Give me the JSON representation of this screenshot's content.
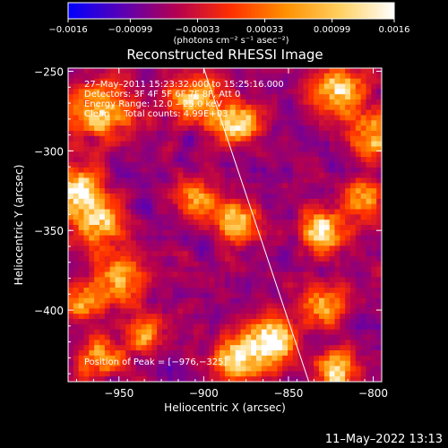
{
  "chart_data": {
    "type": "heatmap",
    "title": "Reconstructed RHESSI Image",
    "xlabel": "Heliocentric X (arcsec)",
    "ylabel": "Heliocentric Y (arcsec)",
    "xlim": [
      -980,
      -795
    ],
    "ylim": [
      -445,
      -248
    ],
    "x_ticks": [
      -950,
      -900,
      -850,
      -800
    ],
    "x_tick_labels": [
      "−950",
      "−900",
      "−850",
      "−800"
    ],
    "y_ticks": [
      -250,
      -300,
      -350,
      -400
    ],
    "y_tick_labels": [
      "−250",
      "−300",
      "−350",
      "−400"
    ],
    "colorbar": {
      "min": -0.0016,
      "max": 0.0016,
      "ticks": [
        -0.0016,
        -0.00099,
        -0.00033,
        0.00033,
        0.00099,
        0.0016
      ],
      "tick_labels": [
        "−0.0016",
        "−0.00099",
        "−0.00033",
        "0.00033",
        "0.00099",
        "0.0016"
      ],
      "units_label": "(photons cm⁻² s⁻¹ asec⁻²)",
      "colormap": [
        "#0000ff",
        "#5a00b4",
        "#b40050",
        "#ff3000",
        "#ff9000",
        "#ffd060",
        "#ffffff"
      ]
    },
    "annotations": [
      "27–May–2011 15:23:32.000 to 15:25:16.000",
      "Detectors: 3F 4F 5F 6F 7F 8F, Att 0",
      "Energy Range: 12.0 – 25.0 keV",
      "Clean     Total counts: 4.99E+03"
    ],
    "peak_label": "Position of Peak = [−976,−325]",
    "peak_position": [
      -976,
      -325
    ],
    "limb_line": {
      "x": [
        -900,
        -838
      ],
      "y": [
        -248,
        -445
      ]
    },
    "blobs": [
      {
        "x": -960,
        "y": -275,
        "amp": 0.0011,
        "sigma": 12
      },
      {
        "x": -975,
        "y": -325,
        "amp": 0.0016,
        "sigma": 9
      },
      {
        "x": -962,
        "y": -345,
        "amp": 0.001,
        "sigma": 10
      },
      {
        "x": -950,
        "y": -380,
        "amp": 0.0008,
        "sigma": 10
      },
      {
        "x": -905,
        "y": -268,
        "amp": 0.0011,
        "sigma": 10
      },
      {
        "x": -880,
        "y": -282,
        "amp": 0.0013,
        "sigma": 9
      },
      {
        "x": -820,
        "y": -262,
        "amp": 0.0012,
        "sigma": 10
      },
      {
        "x": -800,
        "y": -290,
        "amp": 0.0011,
        "sigma": 9
      },
      {
        "x": -805,
        "y": -330,
        "amp": 0.0008,
        "sigma": 8
      },
      {
        "x": -880,
        "y": -345,
        "amp": 0.0012,
        "sigma": 9
      },
      {
        "x": -905,
        "y": -330,
        "amp": 0.0006,
        "sigma": 8
      },
      {
        "x": -830,
        "y": -350,
        "amp": 0.0012,
        "sigma": 9
      },
      {
        "x": -830,
        "y": -398,
        "amp": 0.0009,
        "sigma": 8
      },
      {
        "x": -860,
        "y": -420,
        "amp": 0.0016,
        "sigma": 10
      },
      {
        "x": -880,
        "y": -430,
        "amp": 0.0012,
        "sigma": 9
      },
      {
        "x": -822,
        "y": -438,
        "amp": 0.0012,
        "sigma": 8
      },
      {
        "x": -960,
        "y": -430,
        "amp": 0.0007,
        "sigma": 9
      },
      {
        "x": -935,
        "y": -415,
        "amp": 0.0006,
        "sigma": 8
      },
      {
        "x": -970,
        "y": -395,
        "amp": 0.0007,
        "sigma": 7
      }
    ],
    "background_level": -0.0007
  },
  "timestamp": "11–May–2022 13:13"
}
